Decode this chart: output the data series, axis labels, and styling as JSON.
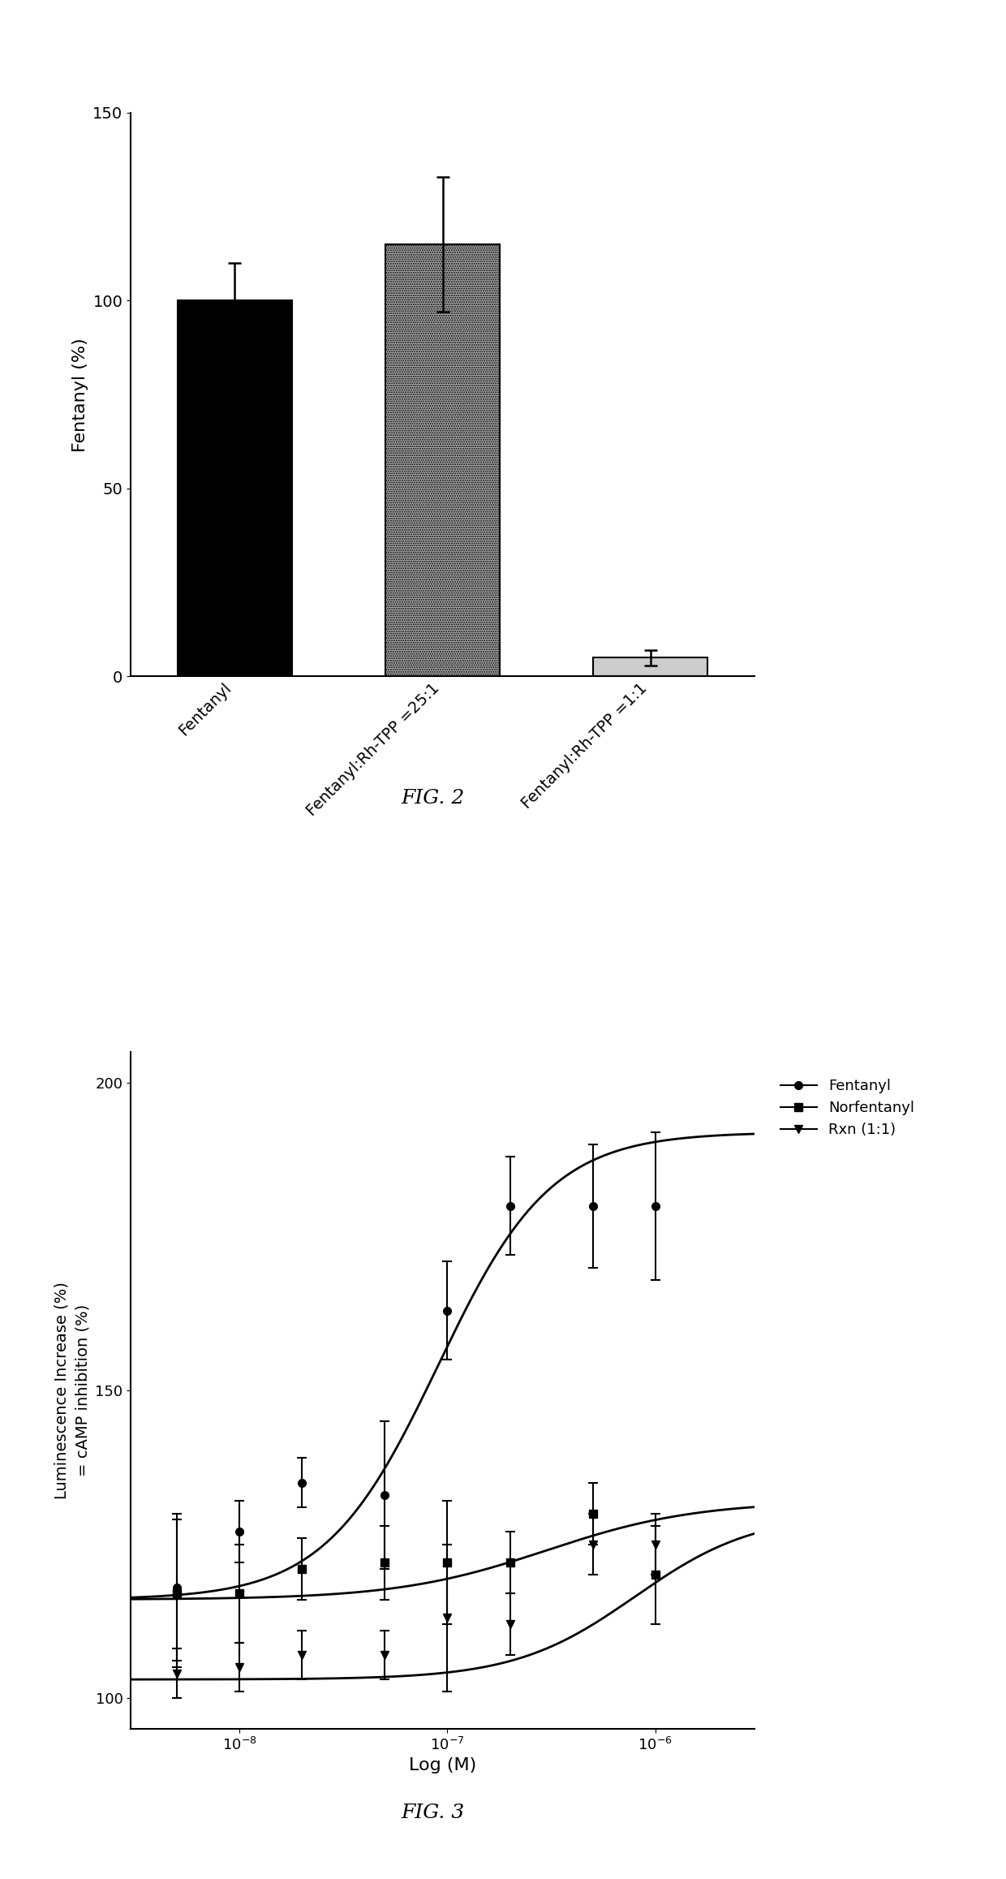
{
  "fig2": {
    "categories": [
      "Fentanyl",
      "Fentanyl:Rh-TPP =25:1",
      "Fentanyl:Rh-TPP =1:1"
    ],
    "values": [
      100.0,
      115.0,
      5.0
    ],
    "errors": [
      10.0,
      18.0,
      2.0
    ],
    "ylabel": "Fentanyl (%)",
    "ylim": [
      0,
      150
    ],
    "yticks": [
      0,
      50,
      100,
      150
    ],
    "figcaption": "FIG. 2"
  },
  "fig3": {
    "fentanyl_x": [
      5e-09,
      1e-08,
      2e-08,
      5e-08,
      1e-07,
      2e-07,
      5e-07,
      1e-06
    ],
    "fentanyl_y": [
      118,
      127,
      135,
      133,
      163,
      180,
      180,
      180
    ],
    "fentanyl_yerr": [
      12,
      5,
      4,
      12,
      8,
      8,
      10,
      12
    ],
    "norfentanyl_x": [
      5e-09,
      1e-08,
      2e-08,
      5e-08,
      1e-07,
      2e-07,
      5e-07,
      1e-06
    ],
    "norfentanyl_y": [
      117,
      117,
      121,
      122,
      122,
      122,
      130,
      120
    ],
    "norfentanyl_yerr": [
      12,
      8,
      5,
      6,
      10,
      5,
      5,
      8
    ],
    "rxn_x": [
      5e-09,
      1e-08,
      2e-08,
      5e-08,
      1e-07,
      2e-07,
      5e-07,
      1e-06
    ],
    "rxn_y": [
      104,
      105,
      107,
      107,
      113,
      112,
      125,
      125
    ],
    "rxn_yerr": [
      4,
      4,
      4,
      4,
      12,
      5,
      5,
      5
    ],
    "xlabel": "Log (M)",
    "ylabel": "Luminescence Increase (%)\n= cAMP inhibition (%)",
    "ylim": [
      95,
      205
    ],
    "yticks": [
      100,
      150,
      200
    ],
    "xlim_lo": 3e-09,
    "xlim_hi": 3e-06,
    "figcaption": "FIG. 3",
    "legend_labels": [
      "Fentanyl",
      "Norfentanyl",
      "Rxn (1:1)"
    ]
  }
}
